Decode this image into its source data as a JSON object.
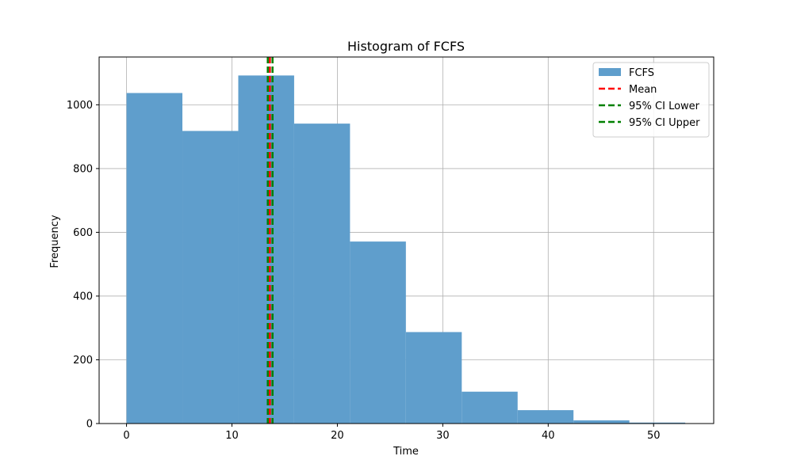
{
  "chart_data": {
    "type": "bar",
    "title": "Histogram of FCFS",
    "xlabel": "Time",
    "ylabel": "Frequency",
    "xlim": [
      -2.6,
      55.7
    ],
    "ylim": [
      0,
      1150
    ],
    "xticks": [
      0,
      10,
      20,
      30,
      40,
      50
    ],
    "yticks": [
      0,
      200,
      400,
      600,
      800,
      1000
    ],
    "grid": true,
    "legend_position": "top-right",
    "bins": [
      {
        "x0": 0.0,
        "x1": 5.3,
        "value": 1037
      },
      {
        "x0": 5.3,
        "x1": 10.6,
        "value": 918
      },
      {
        "x0": 10.6,
        "x1": 15.9,
        "value": 1092
      },
      {
        "x0": 15.9,
        "x1": 21.2,
        "value": 941
      },
      {
        "x0": 21.2,
        "x1": 26.5,
        "value": 571
      },
      {
        "x0": 26.5,
        "x1": 31.8,
        "value": 287
      },
      {
        "x0": 31.8,
        "x1": 37.1,
        "value": 100
      },
      {
        "x0": 37.1,
        "x1": 42.4,
        "value": 42
      },
      {
        "x0": 42.4,
        "x1": 47.7,
        "value": 10
      },
      {
        "x0": 47.7,
        "x1": 53.0,
        "value": 3
      }
    ],
    "series": [
      {
        "name": "FCFS",
        "kind": "histogram",
        "color": "#5f9ecc"
      }
    ],
    "reference_lines": [
      {
        "name": "Mean",
        "x": 13.6,
        "color": "#ff0000",
        "style": "dashed"
      },
      {
        "name": "95% CI Lower",
        "x": 13.4,
        "color": "#008000",
        "style": "dashed"
      },
      {
        "name": "95% CI Upper",
        "x": 13.85,
        "color": "#008000",
        "style": "dashed"
      }
    ]
  }
}
